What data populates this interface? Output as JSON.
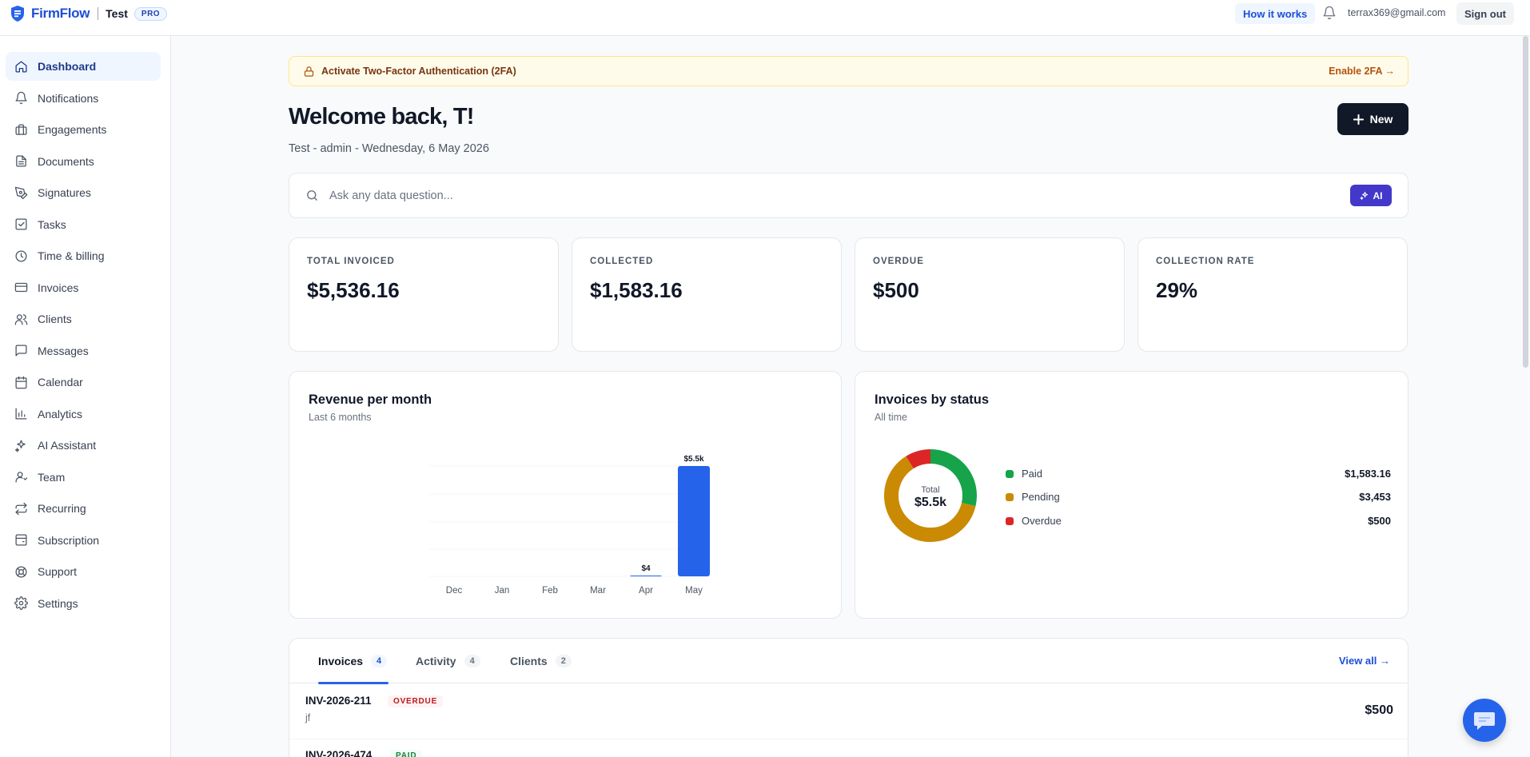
{
  "topbar": {
    "brand_name": "FirmFlow",
    "workspace": "Test",
    "plan_badge": "PRO",
    "how_it_works": "How it works",
    "user_email": "terrax369@gmail.com",
    "sign_out": "Sign out"
  },
  "sidebar": {
    "items": [
      {
        "label": "Dashboard",
        "icon": "home-icon",
        "active": true
      },
      {
        "label": "Notifications",
        "icon": "bell-icon"
      },
      {
        "label": "Engagements",
        "icon": "briefcase-icon"
      },
      {
        "label": "Documents",
        "icon": "document-icon"
      },
      {
        "label": "Signatures",
        "icon": "pen-icon"
      },
      {
        "label": "Tasks",
        "icon": "checkbox-icon"
      },
      {
        "label": "Time & billing",
        "icon": "clock-icon"
      },
      {
        "label": "Invoices",
        "icon": "credit-card-icon"
      },
      {
        "label": "Clients",
        "icon": "users-icon"
      },
      {
        "label": "Messages",
        "icon": "message-icon"
      },
      {
        "label": "Calendar",
        "icon": "calendar-icon"
      },
      {
        "label": "Analytics",
        "icon": "bar-chart-icon"
      },
      {
        "label": "AI Assistant",
        "icon": "sparkles-icon"
      },
      {
        "label": "Team",
        "icon": "user-team-icon"
      },
      {
        "label": "Recurring",
        "icon": "repeat-icon"
      },
      {
        "label": "Subscription",
        "icon": "wallet-icon"
      },
      {
        "label": "Support",
        "icon": "lifebuoy-icon"
      },
      {
        "label": "Settings",
        "icon": "gear-icon"
      }
    ]
  },
  "banner": {
    "text": "Activate Two-Factor Authentication (2FA)",
    "action": "Enable 2FA →"
  },
  "header": {
    "welcome": "Welcome back, T!",
    "subtitle": "Test - admin - Wednesday, 6 May 2026",
    "new_button": "New"
  },
  "search": {
    "placeholder": "Ask any data question...",
    "ai_button": "AI"
  },
  "kpis": [
    {
      "label": "TOTAL INVOICED",
      "value": "$5,536.16"
    },
    {
      "label": "COLLECTED",
      "value": "$1,583.16"
    },
    {
      "label": "OVERDUE",
      "value": "$500"
    },
    {
      "label": "COLLECTION RATE",
      "value": "29%"
    }
  ],
  "revenue_card": {
    "title": "Revenue per month",
    "subtitle": "Last 6 months"
  },
  "status_card": {
    "title": "Invoices by status",
    "subtitle": "All time",
    "center_label": "Total",
    "center_value": "$5.5k",
    "legend": [
      {
        "name": "Paid",
        "value": "$1,583.16",
        "color": "#16a34a"
      },
      {
        "name": "Pending",
        "value": "$3,453",
        "color": "#ca8a04"
      },
      {
        "name": "Overdue",
        "value": "$500",
        "color": "#dc2626"
      }
    ]
  },
  "chart_data": [
    {
      "type": "bar",
      "title": "Revenue per month",
      "subtitle": "Last 6 months",
      "categories": [
        "Dec",
        "Jan",
        "Feb",
        "Mar",
        "Apr",
        "May"
      ],
      "values": [
        0,
        0,
        0,
        0,
        4,
        5536.16
      ],
      "data_labels": [
        "",
        "",
        "",
        "",
        "$4",
        "$5.5k"
      ],
      "color": "#2563eb",
      "ylim": [
        0,
        5536.16
      ],
      "grid": true
    },
    {
      "type": "pie",
      "title": "Invoices by status",
      "subtitle": "All time",
      "donut": true,
      "categories": [
        "Paid",
        "Pending",
        "Overdue"
      ],
      "values": [
        1583.16,
        3453,
        500
      ],
      "colors": [
        "#16a34a",
        "#ca8a04",
        "#dc2626"
      ]
    }
  ],
  "tabs": {
    "items": [
      {
        "label": "Invoices",
        "count": "4",
        "active": true
      },
      {
        "label": "Activity",
        "count": "4"
      },
      {
        "label": "Clients",
        "count": "2"
      }
    ],
    "view_all": "View all →"
  },
  "invoices": [
    {
      "number": "INV-2026-211",
      "status": "OVERDUE",
      "client": "jf",
      "amount": "$500"
    },
    {
      "number": "INV-2026-474",
      "status": "PAID",
      "client": "",
      "amount": ""
    }
  ]
}
